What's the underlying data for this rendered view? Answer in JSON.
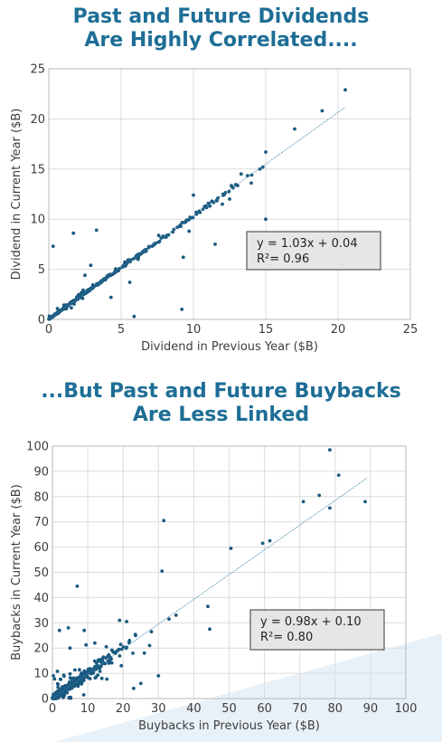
{
  "titles": {
    "chart1": [
      "Past and Future Dividends",
      "Are Highly Correlated...."
    ],
    "chart2": [
      "...But Past and Future Buybacks",
      "Are Less Linked"
    ]
  },
  "colors": {
    "title": "#1e6e96",
    "points": "#1a5a80",
    "fit_line": "#3b7ea6",
    "equation_box": "#e6e6e6",
    "background_wedge": "#e8f1f8"
  },
  "chart_data": [
    {
      "type": "scatter",
      "title": "Past and Future Dividends Are Highly Correlated....",
      "xlabel": "Dividend in Previous Year ($B)",
      "ylabel": "Dividend in Current Year ($B)",
      "xlim": [
        0,
        25
      ],
      "ylim": [
        0,
        25
      ],
      "xticks": [
        0,
        5,
        10,
        15,
        20,
        25
      ],
      "yticks": [
        0,
        5,
        10,
        15,
        20,
        25
      ],
      "grid": true,
      "fit": {
        "slope": 1.03,
        "intercept": 0.04
      },
      "annotation": {
        "line1": "y = 1.03x + 0.04",
        "line2": "R²= 0.96"
      },
      "notable_points": [
        {
          "x": 20.5,
          "y": 22.9
        },
        {
          "x": 18.9,
          "y": 20.8
        },
        {
          "x": 17.0,
          "y": 19.0
        },
        {
          "x": 15.0,
          "y": 16.7
        },
        {
          "x": 14.8,
          "y": 15.2
        },
        {
          "x": 14.6,
          "y": 15.0
        },
        {
          "x": 15.0,
          "y": 10.0
        },
        {
          "x": 9.2,
          "y": 1.0
        },
        {
          "x": 5.9,
          "y": 0.3
        },
        {
          "x": 3.3,
          "y": 8.9
        },
        {
          "x": 1.7,
          "y": 8.6
        },
        {
          "x": 0.3,
          "y": 7.3
        },
        {
          "x": 10.0,
          "y": 12.4
        },
        {
          "x": 9.7,
          "y": 8.8
        },
        {
          "x": 11.5,
          "y": 7.5
        },
        {
          "x": 9.3,
          "y": 6.2
        },
        {
          "x": 12.5,
          "y": 12.0
        },
        {
          "x": 13.3,
          "y": 14.5
        },
        {
          "x": 14.0,
          "y": 13.6
        },
        {
          "x": 12.0,
          "y": 11.5
        },
        {
          "x": 5.6,
          "y": 3.7
        },
        {
          "x": 4.3,
          "y": 2.2
        },
        {
          "x": 2.9,
          "y": 5.4
        },
        {
          "x": 2.5,
          "y": 4.4
        }
      ],
      "cluster": {
        "n": 330,
        "xmax": 14.5,
        "noise": 0.35,
        "decay": 3.2
      }
    },
    {
      "type": "scatter",
      "title": "...But Past and Future Buybacks Are Less Linked",
      "xlabel": "Buybacks in Previous Year ($B)",
      "ylabel": "Buybacks in Current Year ($B)",
      "xlim": [
        0,
        100
      ],
      "ylim": [
        0,
        100
      ],
      "xticks": [
        0,
        10,
        20,
        30,
        40,
        50,
        60,
        70,
        80,
        90,
        100
      ],
      "yticks": [
        0,
        10,
        20,
        30,
        40,
        50,
        60,
        70,
        80,
        90,
        100
      ],
      "grid": true,
      "fit": {
        "slope": 0.98,
        "intercept": 0.1
      },
      "annotation": {
        "line1": "y = 0.98x + 0.10",
        "line2": "R²= 0.80"
      },
      "notable_points": [
        {
          "x": 78.5,
          "y": 98.5
        },
        {
          "x": 81,
          "y": 88.5
        },
        {
          "x": 88.5,
          "y": 78
        },
        {
          "x": 78.5,
          "y": 75.5
        },
        {
          "x": 75.5,
          "y": 80.5
        },
        {
          "x": 71,
          "y": 78
        },
        {
          "x": 61.5,
          "y": 62.5
        },
        {
          "x": 59.5,
          "y": 61.5
        },
        {
          "x": 50.5,
          "y": 59.5
        },
        {
          "x": 35,
          "y": 33
        },
        {
          "x": 33,
          "y": 31.5
        },
        {
          "x": 44,
          "y": 36.5
        },
        {
          "x": 44.5,
          "y": 27.5
        },
        {
          "x": 31.5,
          "y": 70.5
        },
        {
          "x": 31,
          "y": 50.5
        },
        {
          "x": 7,
          "y": 44.5
        },
        {
          "x": 21,
          "y": 30.5
        },
        {
          "x": 19,
          "y": 31
        },
        {
          "x": 28,
          "y": 26.5
        },
        {
          "x": 27.5,
          "y": 21
        },
        {
          "x": 26,
          "y": 18
        },
        {
          "x": 25,
          "y": 6
        },
        {
          "x": 23,
          "y": 4
        },
        {
          "x": 30,
          "y": 9
        },
        {
          "x": 19.5,
          "y": 13
        },
        {
          "x": 16,
          "y": 14
        },
        {
          "x": 12,
          "y": 22
        },
        {
          "x": 9,
          "y": 27
        },
        {
          "x": 4.5,
          "y": 28
        },
        {
          "x": 2,
          "y": 27
        },
        {
          "x": 5,
          "y": 20
        },
        {
          "x": 14,
          "y": 8
        }
      ],
      "cluster": {
        "n": 520,
        "xmax": 24,
        "noise": 4.5,
        "decay": 4.5
      }
    }
  ]
}
